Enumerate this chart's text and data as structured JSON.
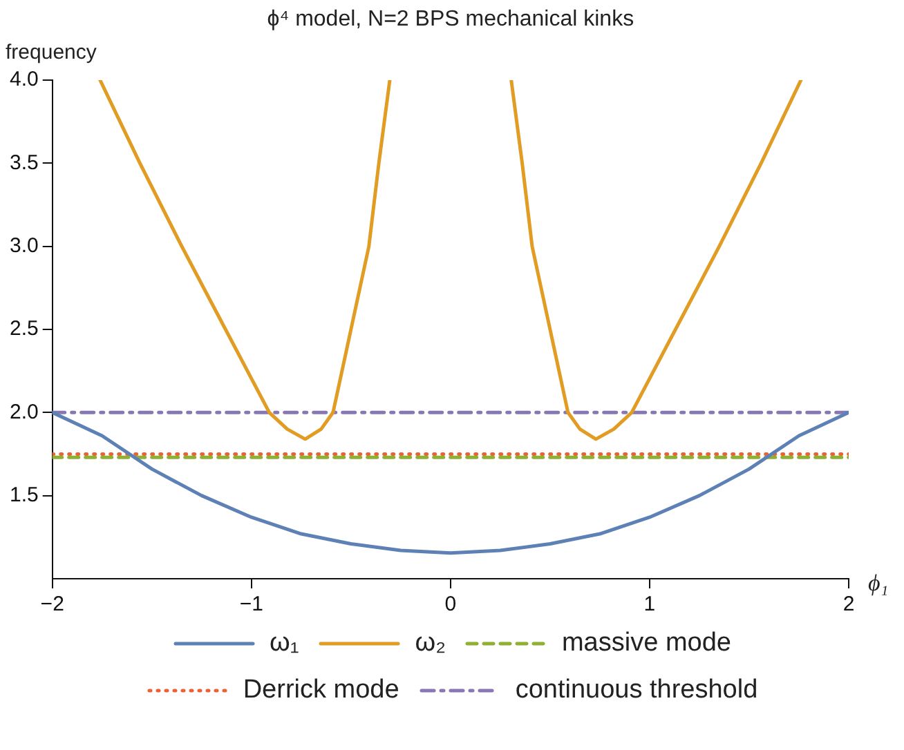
{
  "chart_data": {
    "type": "line",
    "title": "ϕ⁴ model, N=2 BPS mechanical kinks",
    "xlabel": "ϕ₁",
    "ylabel": "frequency",
    "xlim": [
      -2,
      2
    ],
    "ylim": [
      1,
      4
    ],
    "xticks": [
      {
        "value": -2,
        "label": "−2"
      },
      {
        "value": -1,
        "label": "−1"
      },
      0,
      1,
      2
    ],
    "yticks": [
      {
        "value": 1.5,
        "label": "1.5"
      },
      {
        "value": 2,
        "label": "2.0"
      },
      {
        "value": 2.5,
        "label": "2.5"
      },
      {
        "value": 3,
        "label": "3.0"
      },
      {
        "value": 3.5,
        "label": "3.5"
      },
      {
        "value": 4,
        "label": "4.0"
      }
    ],
    "grid": false,
    "legend": "bottom",
    "marker": "none",
    "series": [
      {
        "name": "ω₁",
        "color": "#5e81b5",
        "line_style": "solid",
        "x": [
          -2,
          -1.75,
          -1.5,
          -1.25,
          -1,
          -0.75,
          -0.5,
          -0.25,
          0,
          0.25,
          0.5,
          0.75,
          1,
          1.25,
          1.5,
          1.75,
          2
        ],
        "values": [
          2.0,
          1.86,
          1.66,
          1.5,
          1.37,
          1.27,
          1.21,
          1.17,
          1.155,
          1.17,
          1.21,
          1.27,
          1.37,
          1.5,
          1.66,
          1.86,
          2.0
        ]
      },
      {
        "name": "ω₂",
        "color": "#e19c24",
        "line_style": "solid",
        "x": [
          -1.76,
          -1.56,
          -1.35,
          -1.13,
          -0.91,
          -0.82,
          -0.73,
          -0.65,
          -0.59,
          -0.5,
          -0.41,
          -0.36,
          -0.305,
          0,
          0.305,
          0.36,
          0.41,
          0.5,
          0.59,
          0.65,
          0.73,
          0.82,
          0.91,
          1.13,
          1.35,
          1.56,
          1.76
        ],
        "values": [
          4.0,
          3.5,
          3.0,
          2.5,
          2.0,
          1.9,
          1.84,
          1.9,
          2.0,
          2.5,
          3.0,
          3.5,
          4.0,
          null,
          4.0,
          3.5,
          3.0,
          2.5,
          2.0,
          1.9,
          1.84,
          1.9,
          2.0,
          2.5,
          3.0,
          3.5,
          4.0
        ]
      },
      {
        "name": "massive mode",
        "color": "#8fb032",
        "line_style": "dashed",
        "x": [
          -2,
          2
        ],
        "values": [
          1.73,
          1.73
        ]
      },
      {
        "name": "Derrick mode",
        "color": "#eb6235",
        "line_style": "dotted",
        "x": [
          -2,
          2
        ],
        "values": [
          1.75,
          1.75
        ]
      },
      {
        "name": "continuous threshold",
        "color": "#8778b3",
        "line_style": "dashdot",
        "x": [
          -2,
          2
        ],
        "values": [
          2.0,
          2.0
        ]
      }
    ]
  }
}
